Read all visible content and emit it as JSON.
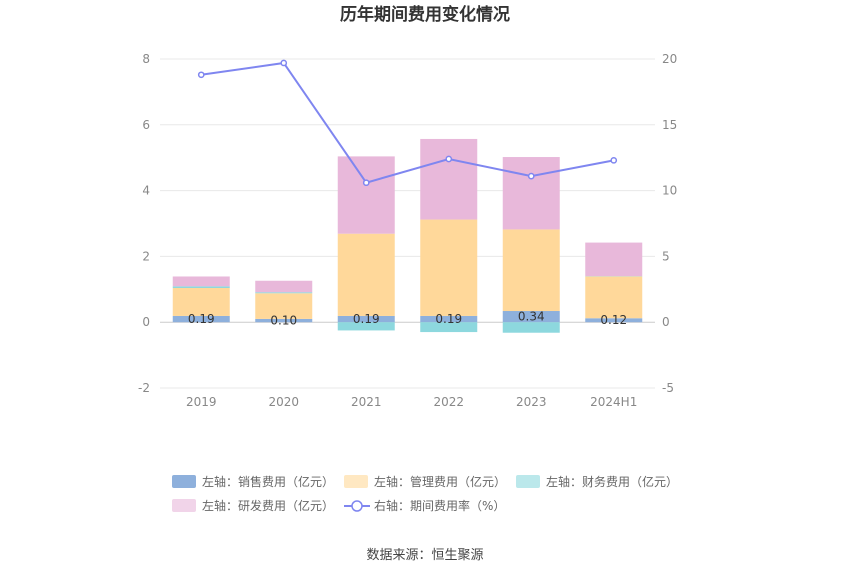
{
  "chart_data": {
    "type": "bar",
    "title": "历年期间费用变化情况",
    "categories": [
      "2019",
      "2020",
      "2021",
      "2022",
      "2023",
      "2024H1"
    ],
    "left_axis": {
      "min": -2,
      "max": 8,
      "ticks": [
        -2,
        0,
        2,
        4,
        6,
        8
      ]
    },
    "right_axis": {
      "min": -5,
      "max": 20,
      "ticks": [
        -5,
        0,
        5,
        10,
        15,
        20
      ]
    },
    "series": [
      {
        "name": "左轴：销售费用（亿元）",
        "axis": "left",
        "kind": "bar",
        "color": "#8eb0dc",
        "values": [
          0.19,
          0.1,
          0.19,
          0.19,
          0.34,
          0.12
        ]
      },
      {
        "name": "左轴：管理费用（亿元）",
        "axis": "left",
        "kind": "bar",
        "color": "#ffd89a",
        "values": [
          0.85,
          0.78,
          2.5,
          2.93,
          2.48,
          1.27
        ]
      },
      {
        "name": "左轴：财务费用（亿元）",
        "axis": "left",
        "kind": "bar",
        "color": "#8dd8de",
        "values": [
          0.05,
          0.03,
          -0.25,
          -0.3,
          -0.32,
          0.01
        ]
      },
      {
        "name": "左轴：研发费用（亿元）",
        "axis": "left",
        "kind": "bar",
        "color": "#e8b8da",
        "values": [
          0.3,
          0.35,
          2.35,
          2.45,
          2.2,
          1.02
        ]
      },
      {
        "name": "右轴：期间费用率（%）",
        "axis": "right",
        "kind": "line",
        "color": "#7f86f0",
        "values": [
          18.8,
          19.7,
          10.6,
          12.4,
          11.1,
          12.3
        ]
      }
    ],
    "data_labels": [
      "0.19",
      "0.10",
      "0.19",
      "0.19",
      "0.34",
      "0.12"
    ],
    "legend_position": "bottom",
    "grid": true
  },
  "source": "数据来源：恒生聚源"
}
